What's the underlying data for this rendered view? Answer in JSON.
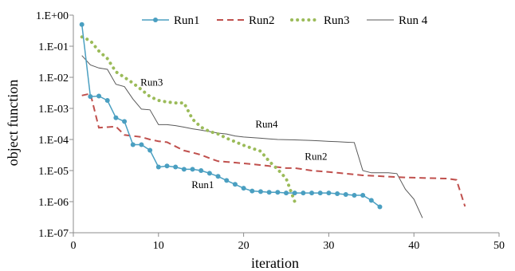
{
  "chart_data": {
    "type": "line",
    "title": "",
    "xlabel": "iteration",
    "ylabel": "object function",
    "xlim": [
      0,
      50
    ],
    "ylim": [
      1e-07,
      1
    ],
    "yscale": "log",
    "grid": false,
    "legend_position": "top",
    "x_ticks": [
      "0",
      "10",
      "20",
      "30",
      "40",
      "50"
    ],
    "y_ticks": [
      "1.E-07",
      "1.E-06",
      "1.E-05",
      "1.E-04",
      "1.E-03",
      "1.E-02",
      "1.E-01",
      "1.E+00"
    ],
    "series": [
      {
        "name": "Run1",
        "color": "#4a9fc1",
        "style": "solid-markers",
        "x": [
          1,
          2,
          3,
          4,
          5,
          6,
          7,
          8,
          9,
          10,
          11,
          12,
          13,
          14,
          15,
          16,
          17,
          18,
          19,
          20,
          21,
          22,
          23,
          24,
          25,
          26,
          27,
          28,
          29,
          30,
          31,
          32,
          33,
          34,
          35,
          36
        ],
        "y": [
          0.5,
          0.0024,
          0.0025,
          0.0018,
          0.0005,
          0.00038,
          6.8e-05,
          6.8e-05,
          4.5e-05,
          1.3e-05,
          1.4e-05,
          1.3e-05,
          1.1e-05,
          1.1e-05,
          1e-05,
          8.2e-06,
          6.5e-06,
          4.8e-06,
          3.6e-06,
          2.7e-06,
          2.2e-06,
          2.1e-06,
          2e-06,
          2e-06,
          1.9e-06,
          1.9e-06,
          1.9e-06,
          1.9e-06,
          1.9e-06,
          1.9e-06,
          1.8e-06,
          1.7e-06,
          1.6e-06,
          1.6e-06,
          1.1e-06,
          6.8e-07
        ]
      },
      {
        "name": "Run2",
        "color": "#c0504d",
        "style": "dashed",
        "x": [
          1,
          2,
          3,
          4,
          5,
          6,
          7,
          8,
          9,
          10,
          11,
          12,
          13,
          14,
          15,
          16,
          17,
          18,
          19,
          20,
          21,
          22,
          23,
          24,
          25,
          26,
          27,
          28,
          29,
          30,
          31,
          32,
          33,
          34,
          35,
          36,
          37,
          38,
          39,
          40,
          41,
          42,
          43,
          44,
          45,
          46
        ],
        "y": [
          0.0026,
          0.003,
          0.00024,
          0.00025,
          0.00026,
          0.00014,
          0.00013,
          0.00012,
          0.0001,
          8.8e-05,
          8.2e-05,
          6e-05,
          4.4e-05,
          3.8e-05,
          3.2e-05,
          2.5e-05,
          2e-05,
          1.9e-05,
          1.8e-05,
          1.7e-05,
          1.6e-05,
          1.5e-05,
          1.4e-05,
          1.3e-05,
          1.2e-05,
          1.2e-05,
          1.1e-05,
          1e-05,
          9.5e-06,
          9e-06,
          8.5e-06,
          8e-06,
          7.5e-06,
          7e-06,
          6.8e-06,
          6.6e-06,
          6.4e-06,
          6.2e-06,
          6e-06,
          5.9e-06,
          5.8e-06,
          5.7e-06,
          5.6e-06,
          5.5e-06,
          5e-06,
          7e-07
        ]
      },
      {
        "name": "Run3",
        "color": "#9bbb59",
        "style": "dotted",
        "x": [
          1,
          2,
          3,
          4,
          5,
          6,
          7,
          8,
          9,
          10,
          11,
          12,
          13,
          14,
          15,
          16,
          17,
          18,
          19,
          20,
          21,
          22,
          23,
          24,
          25,
          26
        ],
        "y": [
          0.2,
          0.15,
          0.07,
          0.04,
          0.015,
          0.01,
          0.0065,
          0.004,
          0.0024,
          0.0018,
          0.0016,
          0.0015,
          0.0015,
          0.00045,
          0.00025,
          0.00018,
          0.00015,
          0.00011,
          8.5e-05,
          6.5e-05,
          5.2e-05,
          4.2e-05,
          2e-05,
          1.1e-05,
          5.5e-06,
          1e-06
        ]
      },
      {
        "name": "Run 4",
        "color": "#595959",
        "style": "solid",
        "x": [
          1,
          2,
          3,
          4,
          5,
          6,
          7,
          8,
          9,
          10,
          11,
          12,
          13,
          14,
          15,
          16,
          17,
          18,
          19,
          20,
          21,
          22,
          23,
          24,
          25,
          26,
          27,
          28,
          29,
          30,
          31,
          32,
          33,
          34,
          35,
          36,
          37,
          38,
          39,
          40,
          41
        ],
        "y": [
          0.05,
          0.025,
          0.02,
          0.018,
          0.006,
          0.005,
          0.002,
          0.00095,
          0.0009,
          0.0003,
          0.0003,
          0.00028,
          0.00025,
          0.00022,
          0.0002,
          0.00018,
          0.00016,
          0.00015,
          0.00013,
          0.00012,
          0.000115,
          0.00011,
          0.000105,
          0.0001,
          9.85e-05,
          9.7e-05,
          9.5e-05,
          9.3e-05,
          9e-05,
          8.7e-05,
          8.5e-05,
          8.2e-05,
          8e-05,
          1e-05,
          8.5e-06,
          8.5e-06,
          8.5e-06,
          8e-06,
          2.5e-06,
          1.2e-06,
          3e-07
        ]
      }
    ],
    "annotations": [
      {
        "text": "Run3",
        "x": 9.2,
        "y": 0.0054
      },
      {
        "text": "Run4",
        "x": 22.7,
        "y": 0.00024
      },
      {
        "text": "Run2",
        "x": 28.5,
        "y": 2.2e-05
      },
      {
        "text": "Run1",
        "x": 15.2,
        "y": 2.7e-06
      }
    ]
  }
}
